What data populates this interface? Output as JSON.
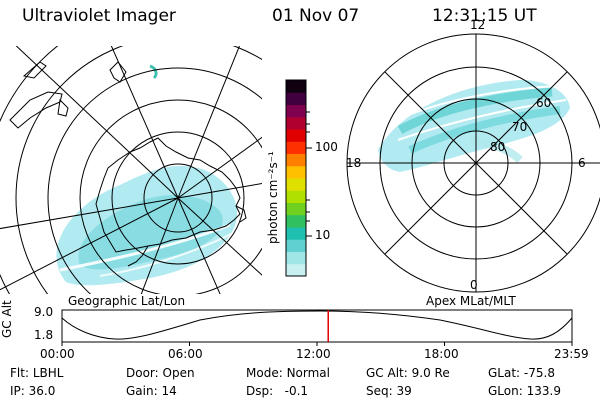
{
  "header": {
    "instrument": "Ultraviolet Imager",
    "date": "01 Nov 07",
    "time": "12:31:15 UT"
  },
  "left_panel": {
    "label": "Geographic Lat/Lon"
  },
  "right_panel": {
    "label": "Apex MLat/MLT",
    "mlt_labels": {
      "top": "12",
      "left": "18",
      "right": "6",
      "bottom": "0"
    },
    "lat_labels": [
      "60",
      "70",
      "80"
    ]
  },
  "colorbar": {
    "unit_label": "photon cm⁻²s⁻¹",
    "tick_labels": [
      "100",
      "10"
    ],
    "colors": [
      "#c8f0f0",
      "#a0e6e6",
      "#60d0d0",
      "#20c0b0",
      "#30c060",
      "#70d020",
      "#b0e000",
      "#e0e000",
      "#ffc000",
      "#ff8000",
      "#ff3000",
      "#e00000",
      "#b00030",
      "#800050",
      "#400040",
      "#100010"
    ]
  },
  "timeline": {
    "ylabel": "GC Alt",
    "y_ticks": [
      "9.0",
      "1.8"
    ],
    "x_ticks": [
      "00:00",
      "06:00",
      "12:00",
      "18:00",
      "23:59"
    ],
    "current_time_fraction": 0.522,
    "marker_color": "#e00000"
  },
  "info": {
    "row1": [
      {
        "label": "Flt:",
        "value": "LBHL"
      },
      {
        "label": "Door:",
        "value": "Open"
      },
      {
        "label": "Mode:",
        "value": "Normal"
      },
      {
        "label": "GC Alt:",
        "value": "9.0 Re"
      },
      {
        "label": "GLat:",
        "value": "-75.8"
      }
    ],
    "row2": [
      {
        "label": "IP:",
        "value": "36.0"
      },
      {
        "label": "Gain:",
        "value": "14"
      },
      {
        "label": "Dsp:",
        "value": "-0.1"
      },
      {
        "label": "Seq:",
        "value": "39"
      },
      {
        "label": "GLon:",
        "value": "133.9"
      }
    ]
  }
}
